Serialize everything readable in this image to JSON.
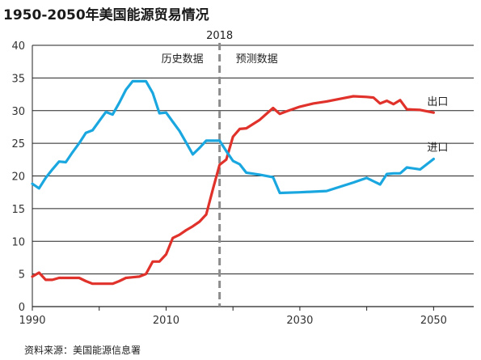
{
  "chart_data": {
    "type": "line",
    "title": "1950-2050年美国能源贸易情况",
    "xlim": [
      1990,
      2056
    ],
    "ylim": [
      0,
      40
    ],
    "x_ticks": [
      1990,
      2010,
      2030,
      2050
    ],
    "y_ticks": [
      0,
      5,
      10,
      15,
      20,
      25,
      30,
      35,
      40
    ],
    "grid": "horizontal",
    "divider": {
      "x": 2018,
      "label": "2018",
      "left_label": "历史数据",
      "right_label": "预测数据"
    },
    "series": [
      {
        "name": "出口",
        "color": "#e0322b",
        "x": [
          1990,
          1991,
          1992,
          1993,
          1994,
          1995,
          1996,
          1997,
          1998,
          1999,
          2000,
          2001,
          2002,
          2003,
          2004,
          2005,
          2006,
          2007,
          2008,
          2009,
          2010,
          2011,
          2012,
          2013,
          2014,
          2015,
          2016,
          2017,
          2018,
          2019,
          2020,
          2021,
          2022,
          2024,
          2026,
          2027,
          2028,
          2030,
          2032,
          2034,
          2036,
          2038,
          2040,
          2041,
          2042,
          2043,
          2044,
          2045,
          2046,
          2048,
          2050
        ],
        "values": [
          4.6,
          5.2,
          4.1,
          4.1,
          4.4,
          4.4,
          4.4,
          4.4,
          3.9,
          3.5,
          3.5,
          3.5,
          3.5,
          3.9,
          4.4,
          4.5,
          4.6,
          5.0,
          6.9,
          6.9,
          8.0,
          10.5,
          11.0,
          11.7,
          12.3,
          13.0,
          14.1,
          18.0,
          21.7,
          22.5,
          26.0,
          27.2,
          27.3,
          28.6,
          30.4,
          29.5,
          29.9,
          30.6,
          31.1,
          31.4,
          31.8,
          32.2,
          32.1,
          32.0,
          31.1,
          31.5,
          31.0,
          31.6,
          30.2,
          30.1,
          29.7
        ]
      },
      {
        "name": "进口",
        "color": "#1aa7e0",
        "x": [
          1990,
          1991,
          1992,
          1993,
          1994,
          1995,
          1996,
          1997,
          1998,
          1999,
          2000,
          2001,
          2002,
          2003,
          2004,
          2005,
          2006,
          2007,
          2008,
          2009,
          2010,
          2011,
          2012,
          2013,
          2014,
          2015,
          2016,
          2017,
          2018,
          2019,
          2020,
          2021,
          2022,
          2024,
          2026,
          2027,
          2030,
          2034,
          2038,
          2040,
          2041,
          2042,
          2043,
          2044,
          2045,
          2046,
          2048,
          2050
        ],
        "values": [
          18.8,
          18.1,
          19.7,
          21.0,
          22.2,
          22.1,
          23.6,
          25.0,
          26.6,
          27.0,
          28.4,
          29.8,
          29.4,
          31.2,
          33.2,
          34.5,
          34.5,
          34.5,
          32.7,
          29.6,
          29.7,
          28.3,
          26.9,
          25.1,
          23.3,
          24.3,
          25.4,
          25.4,
          25.4,
          23.8,
          22.3,
          21.8,
          20.5,
          20.2,
          19.8,
          17.4,
          17.5,
          17.7,
          19.0,
          19.7,
          19.2,
          18.7,
          20.3,
          20.4,
          20.4,
          21.3,
          21.0,
          22.6
        ]
      }
    ]
  },
  "source": "资料来源：美国能源信息署"
}
